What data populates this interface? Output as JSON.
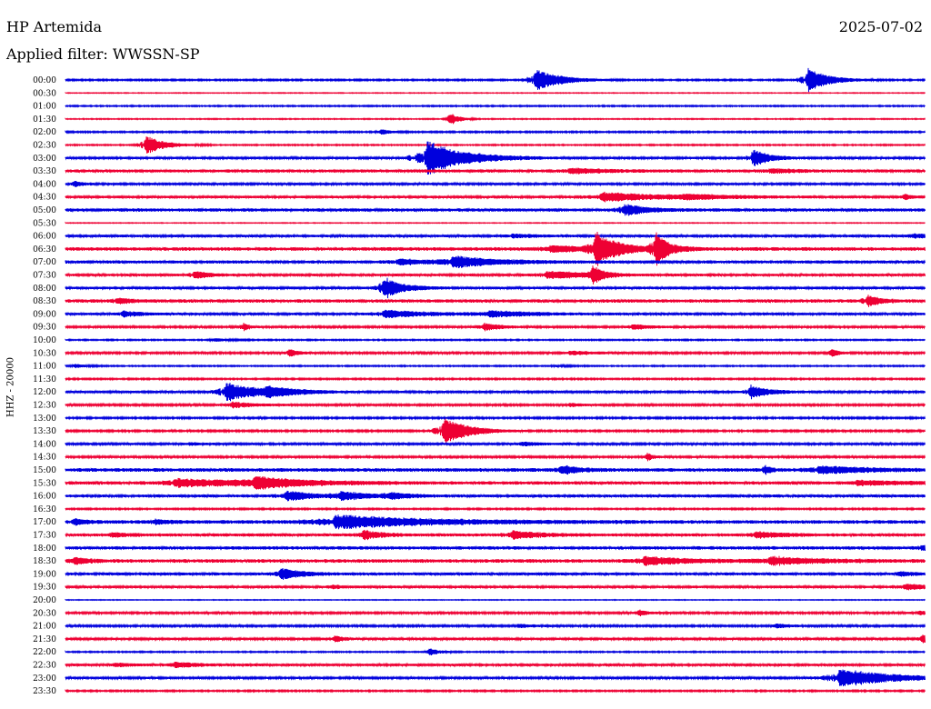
{
  "header": {
    "station": "HP Artemida",
    "date": "2025-07-02",
    "filter_label": "Applied filter:",
    "filter_name": "WWSSN-SP"
  },
  "chart_data": {
    "type": "line",
    "title": "HP Artemida",
    "subtitle": "Applied filter: WWSSN-SP",
    "date": "2025-07-02",
    "ylabel": "HHZ - 20000",
    "xlabel": "",
    "grid": false,
    "legend": "none",
    "colors": [
      "#0000dd",
      "#ee0033"
    ],
    "row_labels": [
      "00:00",
      "00:30",
      "01:00",
      "01:30",
      "02:00",
      "02:30",
      "03:00",
      "03:30",
      "04:00",
      "04:30",
      "05:00",
      "05:30",
      "06:00",
      "06:30",
      "07:00",
      "07:30",
      "08:00",
      "08:30",
      "09:00",
      "09:30",
      "10:00",
      "10:30",
      "11:00",
      "11:30",
      "12:00",
      "12:30",
      "13:00",
      "13:30",
      "14:00",
      "14:30",
      "15:00",
      "15:30",
      "16:00",
      "16:30",
      "17:00",
      "17:30",
      "18:00",
      "18:30",
      "19:00",
      "19:30",
      "20:00",
      "20:30",
      "21:00",
      "21:30",
      "22:00",
      "22:30",
      "23:00",
      "23:30"
    ],
    "x_range_minutes": [
      0,
      30
    ],
    "rows": [
      {
        "row": "00:00",
        "noise": 0.6,
        "events": [
          [
            16.3,
            12,
            0.8
          ],
          [
            25.8,
            13,
            0.7
          ]
        ]
      },
      {
        "row": "00:30",
        "noise": 0.3,
        "events": []
      },
      {
        "row": "01:00",
        "noise": 0.5,
        "events": []
      },
      {
        "row": "01:30",
        "noise": 0.4,
        "events": [
          [
            13.3,
            7,
            0.3
          ]
        ]
      },
      {
        "row": "02:00",
        "noise": 0.6,
        "events": [
          [
            10.9,
            3,
            0.3
          ]
        ]
      },
      {
        "row": "02:30",
        "noise": 0.5,
        "events": [
          [
            2.7,
            10,
            0.6
          ]
        ]
      },
      {
        "row": "03:00",
        "noise": 0.9,
        "events": [
          [
            12.5,
            20,
            1.2
          ],
          [
            23.9,
            10,
            0.5
          ]
        ]
      },
      {
        "row": "03:30",
        "noise": 1.2,
        "events": [
          [
            17.5,
            3,
            1.0
          ],
          [
            24.5,
            2,
            0.8
          ]
        ]
      },
      {
        "row": "04:00",
        "noise": 0.9,
        "events": [
          [
            0.2,
            3,
            0.3
          ]
        ]
      },
      {
        "row": "04:30",
        "noise": 1.0,
        "events": [
          [
            18.6,
            5,
            2.0
          ],
          [
            21.5,
            2,
            1.5
          ],
          [
            29.2,
            3,
            0.2
          ]
        ]
      },
      {
        "row": "05:00",
        "noise": 1.3,
        "events": [
          [
            19.4,
            6,
            0.7
          ]
        ]
      },
      {
        "row": "05:30",
        "noise": 0.3,
        "events": []
      },
      {
        "row": "06:00",
        "noise": 1.0,
        "events": [
          [
            15.5,
            2,
            0.8
          ],
          [
            29.5,
            2,
            0.8
          ]
        ]
      },
      {
        "row": "06:30",
        "noise": 1.4,
        "events": [
          [
            18.4,
            17,
            0.7
          ],
          [
            20.5,
            17,
            0.4
          ],
          [
            16.8,
            3,
            2.0
          ]
        ]
      },
      {
        "row": "07:00",
        "noise": 1.2,
        "events": [
          [
            13.4,
            6,
            1.5
          ],
          [
            11.5,
            3,
            1.0
          ]
        ]
      },
      {
        "row": "07:30",
        "noise": 1.0,
        "events": [
          [
            4.4,
            4,
            0.5
          ],
          [
            16.7,
            4,
            1.5
          ],
          [
            18.3,
            10,
            0.3
          ]
        ]
      },
      {
        "row": "08:00",
        "noise": 1.0,
        "events": [
          [
            11.0,
            12,
            0.6
          ]
        ]
      },
      {
        "row": "08:30",
        "noise": 1.3,
        "events": [
          [
            1.7,
            3,
            0.4
          ],
          [
            27.9,
            6,
            0.4
          ]
        ]
      },
      {
        "row": "09:00",
        "noise": 1.0,
        "events": [
          [
            1.9,
            3,
            0.6
          ],
          [
            11.0,
            4,
            1.5
          ],
          [
            14.7,
            3,
            1.5
          ]
        ]
      },
      {
        "row": "09:30",
        "noise": 0.8,
        "events": [
          [
            14.5,
            4,
            0.6
          ],
          [
            19.7,
            3,
            0.6
          ],
          [
            6.1,
            4,
            0.2
          ]
        ]
      },
      {
        "row": "10:00",
        "noise": 0.5,
        "events": [
          [
            5.1,
            2,
            0.4
          ]
        ]
      },
      {
        "row": "10:30",
        "noise": 0.8,
        "events": [
          [
            7.7,
            4,
            0.3
          ],
          [
            26.6,
            4,
            0.3
          ],
          [
            17.5,
            2,
            0.8
          ]
        ]
      },
      {
        "row": "11:00",
        "noise": 0.5,
        "events": [
          [
            0.2,
            2,
            0.4
          ],
          [
            17.0,
            1,
            0.4
          ]
        ]
      },
      {
        "row": "11:30",
        "noise": 0.6,
        "events": []
      },
      {
        "row": "12:00",
        "noise": 0.9,
        "events": [
          [
            5.5,
            10,
            1.0
          ],
          [
            6.9,
            5,
            1.0
          ],
          [
            23.8,
            7,
            0.6
          ]
        ]
      },
      {
        "row": "12:30",
        "noise": 0.8,
        "events": [
          [
            5.7,
            3,
            0.8
          ],
          [
            17.5,
            2,
            0.4
          ]
        ]
      },
      {
        "row": "13:00",
        "noise": 0.7,
        "events": []
      },
      {
        "row": "13:30",
        "noise": 0.7,
        "events": [
          [
            13.1,
            15,
            0.8
          ]
        ]
      },
      {
        "row": "14:00",
        "noise": 0.9,
        "events": [
          [
            15.8,
            2,
            0.6
          ],
          [
            4.2,
            1,
            0.5
          ]
        ]
      },
      {
        "row": "14:30",
        "noise": 0.8,
        "events": [
          [
            20.2,
            4,
            0.2
          ]
        ]
      },
      {
        "row": "15:00",
        "noise": 1.4,
        "events": [
          [
            17.2,
            5,
            0.5
          ],
          [
            24.3,
            4,
            0.2
          ],
          [
            26.2,
            4,
            1.5
          ]
        ]
      },
      {
        "row": "15:30",
        "noise": 1.3,
        "events": [
          [
            3.7,
            4,
            2.5
          ],
          [
            6.5,
            6,
            1.5
          ],
          [
            27.5,
            2,
            2.0
          ]
        ]
      },
      {
        "row": "16:00",
        "noise": 1.1,
        "events": [
          [
            7.6,
            5,
            1.0
          ],
          [
            9.5,
            4,
            1.0
          ],
          [
            11.2,
            3,
            0.7
          ]
        ]
      },
      {
        "row": "16:30",
        "noise": 0.6,
        "events": []
      },
      {
        "row": "17:00",
        "noise": 1.4,
        "events": [
          [
            0.2,
            3,
            0.4
          ],
          [
            9.3,
            7,
            3.0
          ],
          [
            3.0,
            2,
            0.5
          ]
        ]
      },
      {
        "row": "17:30",
        "noise": 1.2,
        "events": [
          [
            1.5,
            2,
            0.7
          ],
          [
            10.3,
            5,
            0.6
          ],
          [
            15.5,
            4,
            1.0
          ],
          [
            24.0,
            3,
            1.0
          ]
        ]
      },
      {
        "row": "18:00",
        "noise": 1.3,
        "events": [
          [
            29.8,
            2,
            0.4
          ]
        ]
      },
      {
        "row": "18:30",
        "noise": 1.4,
        "events": [
          [
            0.2,
            4,
            0.4
          ],
          [
            20.1,
            4,
            1.5
          ],
          [
            24.5,
            4,
            1.5
          ]
        ]
      },
      {
        "row": "19:00",
        "noise": 1.1,
        "events": [
          [
            7.4,
            6,
            0.7
          ],
          [
            29.0,
            2,
            0.6
          ]
        ]
      },
      {
        "row": "19:30",
        "noise": 1.0,
        "events": [
          [
            29.2,
            3,
            1.0
          ],
          [
            9.2,
            2,
            0.3
          ]
        ]
      },
      {
        "row": "20:00",
        "noise": 0.3,
        "events": []
      },
      {
        "row": "20:30",
        "noise": 0.8,
        "events": [
          [
            19.9,
            3,
            0.3
          ],
          [
            29.7,
            2,
            0.5
          ]
        ]
      },
      {
        "row": "21:00",
        "noise": 0.8,
        "events": [
          [
            15.7,
            2,
            0.5
          ],
          [
            24.7,
            2,
            0.5
          ]
        ]
      },
      {
        "row": "21:30",
        "noise": 0.9,
        "events": [
          [
            9.3,
            3,
            0.3
          ],
          [
            29.8,
            4,
            0.3
          ]
        ]
      },
      {
        "row": "22:00",
        "noise": 0.5,
        "events": [
          [
            12.6,
            4,
            0.3
          ]
        ]
      },
      {
        "row": "22:30",
        "noise": 1.0,
        "events": [
          [
            3.7,
            3,
            0.8
          ],
          [
            1.6,
            2,
            0.5
          ]
        ]
      },
      {
        "row": "23:00",
        "noise": 0.8,
        "events": [
          [
            26.9,
            10,
            1.8
          ]
        ]
      },
      {
        "row": "23:30",
        "noise": 0.6,
        "events": []
      }
    ]
  }
}
